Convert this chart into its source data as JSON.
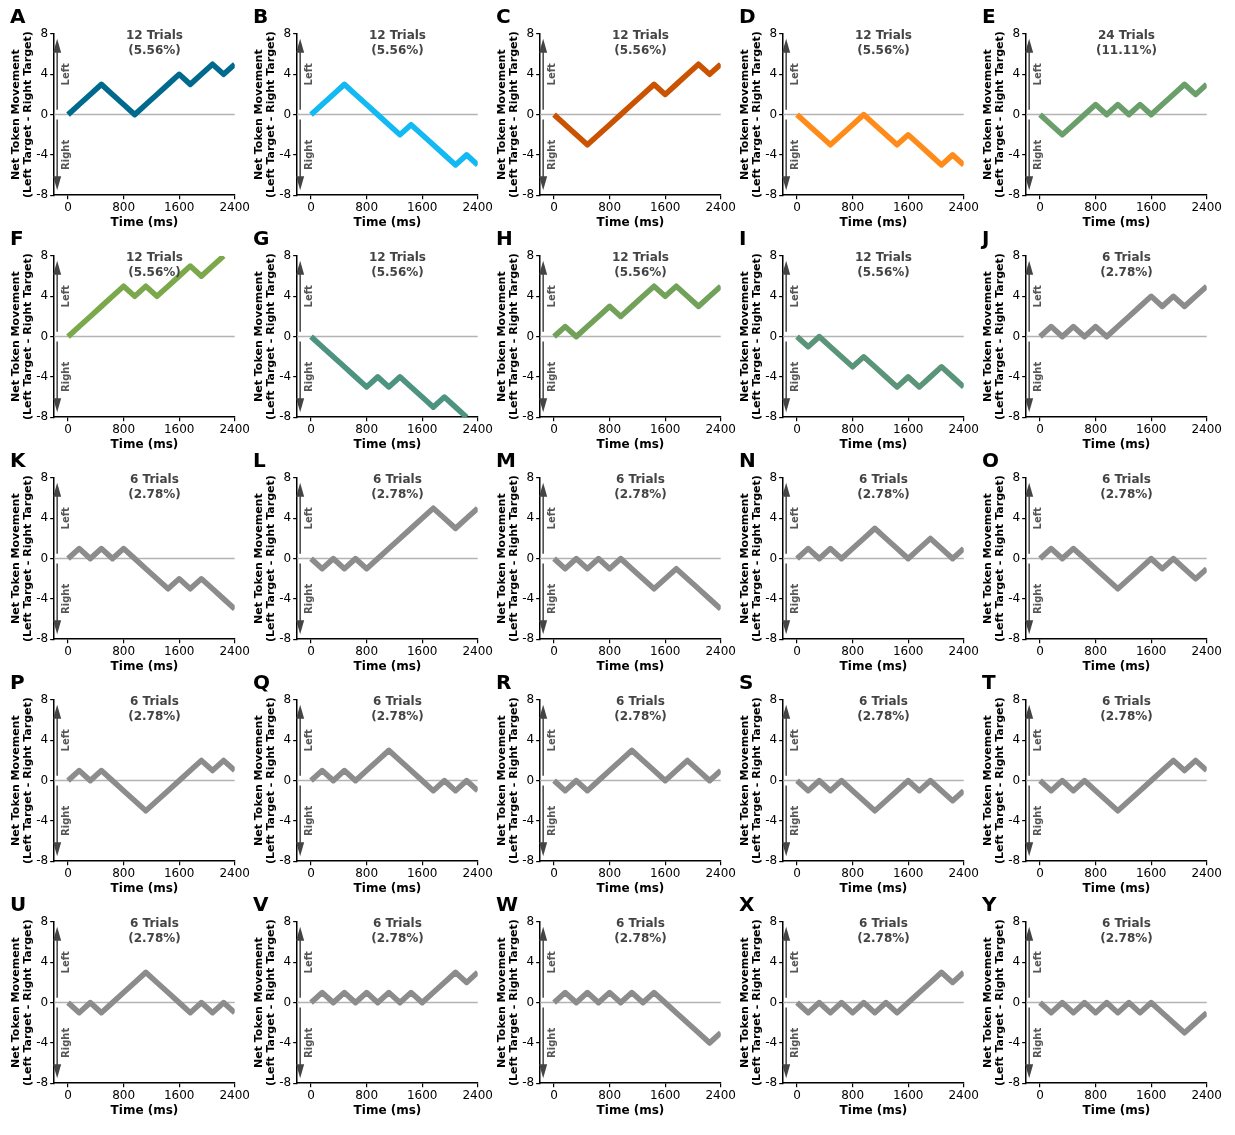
{
  "chart_data": [
    {
      "type": "line",
      "title": "A",
      "subtitle": "12 Trials\n(5.56%)",
      "xlabel": "Time (ms)",
      "ylabel": "Net Token Movement\n(Left Target - Right Target)",
      "annotations": [
        "Left",
        "Right"
      ],
      "x": [
        0,
        160,
        320,
        480,
        640,
        800,
        960,
        1120,
        1280,
        1440,
        1600,
        1760,
        1920,
        2080,
        2240,
        2400
      ],
      "xlim": [
        -200,
        2400
      ],
      "xticks": [
        0,
        800,
        1600,
        2400
      ],
      "ylim": [
        -8,
        8
      ],
      "yticks": [
        -8,
        -4,
        0,
        4,
        8
      ],
      "ref_lines": [
        {
          "axis": "y",
          "value": 0,
          "color": "#b3b3b3"
        }
      ],
      "series": [
        {
          "color": "#006a8e",
          "values": [
            0,
            1,
            2,
            3,
            2,
            1,
            0,
            1,
            2,
            3,
            4,
            3,
            4,
            5,
            4,
            5
          ]
        }
      ]
    },
    {
      "type": "line",
      "title": "B",
      "subtitle": "12 Trials\n(5.56%)",
      "xlabel": "Time (ms)",
      "ylabel": "Net Token Movement\n(Left Target - Right Target)",
      "annotations": [
        "Left",
        "Right"
      ],
      "x": [
        0,
        160,
        320,
        480,
        640,
        800,
        960,
        1120,
        1280,
        1440,
        1600,
        1760,
        1920,
        2080,
        2240,
        2400
      ],
      "xlim": [
        -200,
        2400
      ],
      "xticks": [
        0,
        800,
        1600,
        2400
      ],
      "ylim": [
        -8,
        8
      ],
      "yticks": [
        -8,
        -4,
        0,
        4,
        8
      ],
      "ref_lines": [
        {
          "axis": "y",
          "value": 0,
          "color": "#b3b3b3"
        }
      ],
      "series": [
        {
          "color": "#12b9f2",
          "values": [
            0,
            1,
            2,
            3,
            2,
            1,
            0,
            -1,
            -2,
            -1,
            -2,
            -3,
            -4,
            -5,
            -4,
            -5
          ]
        }
      ]
    },
    {
      "type": "line",
      "title": "C",
      "subtitle": "12 Trials\n(5.56%)",
      "xlabel": "Time (ms)",
      "ylabel": "Net Token Movement\n(Left Target - Right Target)",
      "annotations": [
        "Left",
        "Right"
      ],
      "x": [
        0,
        160,
        320,
        480,
        640,
        800,
        960,
        1120,
        1280,
        1440,
        1600,
        1760,
        1920,
        2080,
        2240,
        2400
      ],
      "xlim": [
        -200,
        2400
      ],
      "xticks": [
        0,
        800,
        1600,
        2400
      ],
      "ylim": [
        -8,
        8
      ],
      "yticks": [
        -8,
        -4,
        0,
        4,
        8
      ],
      "ref_lines": [
        {
          "axis": "y",
          "value": 0,
          "color": "#b3b3b3"
        }
      ],
      "series": [
        {
          "color": "#c95300",
          "values": [
            0,
            -1,
            -2,
            -3,
            -2,
            -1,
            0,
            1,
            2,
            3,
            2,
            3,
            4,
            5,
            4,
            5
          ]
        }
      ]
    },
    {
      "type": "line",
      "title": "D",
      "subtitle": "12 Trials\n(5.56%)",
      "xlabel": "Time (ms)",
      "ylabel": "Net Token Movement\n(Left Target - Right Target)",
      "annotations": [
        "Left",
        "Right"
      ],
      "x": [
        0,
        160,
        320,
        480,
        640,
        800,
        960,
        1120,
        1280,
        1440,
        1600,
        1760,
        1920,
        2080,
        2240,
        2400
      ],
      "xlim": [
        -200,
        2400
      ],
      "xticks": [
        0,
        800,
        1600,
        2400
      ],
      "ylim": [
        -8,
        8
      ],
      "yticks": [
        -8,
        -4,
        0,
        4,
        8
      ],
      "ref_lines": [
        {
          "axis": "y",
          "value": 0,
          "color": "#b3b3b3"
        }
      ],
      "series": [
        {
          "color": "#ff8c1a",
          "values": [
            0,
            -1,
            -2,
            -3,
            -2,
            -1,
            0,
            -1,
            -2,
            -3,
            -2,
            -3,
            -4,
            -5,
            -4,
            -5
          ]
        }
      ]
    },
    {
      "type": "line",
      "title": "E",
      "subtitle": "24 Trials\n(11.11%)",
      "xlabel": "Time (ms)",
      "ylabel": "Net Token Movement\n(Left Target - Right Target)",
      "annotations": [
        "Left",
        "Right"
      ],
      "x": [
        0,
        160,
        320,
        480,
        640,
        800,
        960,
        1120,
        1280,
        1440,
        1600,
        1760,
        1920,
        2080,
        2240,
        2400
      ],
      "xlim": [
        -200,
        2400
      ],
      "xticks": [
        0,
        800,
        1600,
        2400
      ],
      "ylim": [
        -8,
        8
      ],
      "yticks": [
        -8,
        -4,
        0,
        4,
        8
      ],
      "ref_lines": [
        {
          "axis": "y",
          "value": 0,
          "color": "#b3b3b3"
        }
      ],
      "series": [
        {
          "color": "#6a9e6a",
          "values": [
            0,
            -1,
            -2,
            -1,
            0,
            1,
            0,
            1,
            0,
            1,
            0,
            1,
            2,
            3,
            2,
            3
          ]
        }
      ]
    },
    {
      "type": "line",
      "title": "F",
      "subtitle": "12 Trials\n(5.56%)",
      "xlabel": "Time (ms)",
      "ylabel": "Net Token Movement\n(Left Target - Right Target)",
      "annotations": [
        "Left",
        "Right"
      ],
      "xlim": [
        -200,
        2400
      ],
      "xticks": [
        0,
        800,
        1600,
        2400
      ],
      "ylim": [
        -8,
        8
      ],
      "yticks": [
        -8,
        -4,
        0,
        4,
        8
      ],
      "ref_lines": [
        {
          "axis": "y",
          "value": 0,
          "color": "#b3b3b3"
        }
      ],
      "series": [
        {
          "color": "#7ba84a",
          "x": [
            0,
            160,
            320,
            480,
            640,
            800,
            960,
            1120,
            1280,
            1440,
            1600,
            1760,
            1920,
            2080,
            2240
          ],
          "values": [
            0,
            1,
            2,
            3,
            4,
            5,
            4,
            5,
            4,
            5,
            6,
            7,
            6,
            7,
            8
          ]
        }
      ]
    },
    {
      "type": "line",
      "title": "G",
      "subtitle": "12 Trials\n(5.56%)",
      "xlabel": "Time (ms)",
      "ylabel": "Net Token Movement\n(Left Target - Right Target)",
      "annotations": [
        "Left",
        "Right"
      ],
      "xlim": [
        -200,
        2400
      ],
      "xticks": [
        0,
        800,
        1600,
        2400
      ],
      "ylim": [
        -8,
        8
      ],
      "yticks": [
        -8,
        -4,
        0,
        4,
        8
      ],
      "ref_lines": [
        {
          "axis": "y",
          "value": 0,
          "color": "#b3b3b3"
        }
      ],
      "series": [
        {
          "color": "#4d9480",
          "x": [
            0,
            160,
            320,
            480,
            640,
            800,
            960,
            1120,
            1280,
            1440,
            1600,
            1760,
            1920,
            2080,
            2240
          ],
          "values": [
            0,
            -1,
            -2,
            -3,
            -4,
            -5,
            -4,
            -5,
            -4,
            -5,
            -6,
            -7,
            -6,
            -7,
            -8
          ]
        }
      ]
    },
    {
      "type": "line",
      "title": "H",
      "subtitle": "12 Trials\n(5.56%)",
      "xlabel": "Time (ms)",
      "ylabel": "Net Token Movement\n(Left Target - Right Target)",
      "annotations": [
        "Left",
        "Right"
      ],
      "x": [
        0,
        160,
        320,
        480,
        640,
        800,
        960,
        1120,
        1280,
        1440,
        1600,
        1760,
        1920,
        2080,
        2240,
        2400
      ],
      "xlim": [
        -200,
        2400
      ],
      "xticks": [
        0,
        800,
        1600,
        2400
      ],
      "ylim": [
        -8,
        8
      ],
      "yticks": [
        -8,
        -4,
        0,
        4,
        8
      ],
      "ref_lines": [
        {
          "axis": "y",
          "value": 0,
          "color": "#b3b3b3"
        }
      ],
      "series": [
        {
          "color": "#72a25a",
          "values": [
            0,
            1,
            0,
            1,
            2,
            3,
            2,
            3,
            4,
            5,
            4,
            5,
            4,
            3,
            4,
            5
          ]
        }
      ]
    },
    {
      "type": "line",
      "title": "I",
      "subtitle": "12 Trials\n(5.56%)",
      "xlabel": "Time (ms)",
      "ylabel": "Net Token Movement\n(Left Target - Right Target)",
      "annotations": [
        "Left",
        "Right"
      ],
      "x": [
        0,
        160,
        320,
        480,
        640,
        800,
        960,
        1120,
        1280,
        1440,
        1600,
        1760,
        1920,
        2080,
        2240,
        2400
      ],
      "xlim": [
        -200,
        2400
      ],
      "xticks": [
        0,
        800,
        1600,
        2400
      ],
      "ylim": [
        -8,
        8
      ],
      "yticks": [
        -8,
        -4,
        0,
        4,
        8
      ],
      "ref_lines": [
        {
          "axis": "y",
          "value": 0,
          "color": "#b3b3b3"
        }
      ],
      "series": [
        {
          "color": "#5a9479",
          "values": [
            0,
            -1,
            0,
            -1,
            -2,
            -3,
            -2,
            -3,
            -4,
            -5,
            -4,
            -5,
            -4,
            -3,
            -4,
            -5
          ]
        }
      ]
    },
    {
      "type": "line",
      "title": "J",
      "subtitle": "6 Trials\n(2.78%)",
      "xlabel": "Time (ms)",
      "ylabel": "Net Token Movement\n(Left Target - Right Target)",
      "annotations": [
        "Left",
        "Right"
      ],
      "x": [
        0,
        160,
        320,
        480,
        640,
        800,
        960,
        1120,
        1280,
        1440,
        1600,
        1760,
        1920,
        2080,
        2240,
        2400
      ],
      "xlim": [
        -200,
        2400
      ],
      "xticks": [
        0,
        800,
        1600,
        2400
      ],
      "ylim": [
        -8,
        8
      ],
      "yticks": [
        -8,
        -4,
        0,
        4,
        8
      ],
      "ref_lines": [
        {
          "axis": "y",
          "value": 0,
          "color": "#b3b3b3"
        }
      ],
      "series": [
        {
          "color": "#8c8c8c",
          "values": [
            0,
            1,
            0,
            1,
            0,
            1,
            0,
            1,
            2,
            3,
            4,
            3,
            4,
            3,
            4,
            5
          ]
        }
      ]
    },
    {
      "type": "line",
      "title": "K",
      "subtitle": "6 Trials\n(2.78%)",
      "xlabel": "Time (ms)",
      "ylabel": "Net Token Movement\n(Left Target - Right Target)",
      "annotations": [
        "Left",
        "Right"
      ],
      "x": [
        0,
        160,
        320,
        480,
        640,
        800,
        960,
        1120,
        1280,
        1440,
        1600,
        1760,
        1920,
        2080,
        2240,
        2400
      ],
      "xlim": [
        -200,
        2400
      ],
      "xticks": [
        0,
        800,
        1600,
        2400
      ],
      "ylim": [
        -8,
        8
      ],
      "yticks": [
        -8,
        -4,
        0,
        4,
        8
      ],
      "ref_lines": [
        {
          "axis": "y",
          "value": 0,
          "color": "#b3b3b3"
        }
      ],
      "series": [
        {
          "color": "#8c8c8c",
          "values": [
            0,
            1,
            0,
            1,
            0,
            1,
            0,
            -1,
            -2,
            -3,
            -2,
            -3,
            -2,
            -3,
            -4,
            -5
          ]
        }
      ]
    },
    {
      "type": "line",
      "title": "L",
      "subtitle": "6 Trials\n(2.78%)",
      "xlabel": "Time (ms)",
      "ylabel": "Net Token Movement\n(Left Target - Right Target)",
      "annotations": [
        "Left",
        "Right"
      ],
      "x": [
        0,
        160,
        320,
        480,
        640,
        800,
        960,
        1120,
        1280,
        1440,
        1600,
        1760,
        1920,
        2080,
        2240,
        2400
      ],
      "xlim": [
        -200,
        2400
      ],
      "xticks": [
        0,
        800,
        1600,
        2400
      ],
      "ylim": [
        -8,
        8
      ],
      "yticks": [
        -8,
        -4,
        0,
        4,
        8
      ],
      "ref_lines": [
        {
          "axis": "y",
          "value": 0,
          "color": "#b3b3b3"
        }
      ],
      "series": [
        {
          "color": "#8c8c8c",
          "values": [
            0,
            -1,
            0,
            -1,
            0,
            -1,
            0,
            1,
            2,
            3,
            4,
            5,
            4,
            3,
            4,
            5
          ]
        }
      ]
    },
    {
      "type": "line",
      "title": "M",
      "subtitle": "6 Trials\n(2.78%)",
      "xlabel": "Time (ms)",
      "ylabel": "Net Token Movement\n(Left Target - Right Target)",
      "annotations": [
        "Left",
        "Right"
      ],
      "x": [
        0,
        160,
        320,
        480,
        640,
        800,
        960,
        1120,
        1280,
        1440,
        1600,
        1760,
        1920,
        2080,
        2240,
        2400
      ],
      "xlim": [
        -200,
        2400
      ],
      "xticks": [
        0,
        800,
        1600,
        2400
      ],
      "ylim": [
        -8,
        8
      ],
      "yticks": [
        -8,
        -4,
        0,
        4,
        8
      ],
      "ref_lines": [
        {
          "axis": "y",
          "value": 0,
          "color": "#b3b3b3"
        }
      ],
      "series": [
        {
          "color": "#8c8c8c",
          "values": [
            0,
            -1,
            0,
            -1,
            0,
            -1,
            0,
            -1,
            -2,
            -3,
            -2,
            -1,
            -2,
            -3,
            -4,
            -5
          ]
        }
      ]
    },
    {
      "type": "line",
      "title": "N",
      "subtitle": "6 Trials\n(2.78%)",
      "xlabel": "Time (ms)",
      "ylabel": "Net Token Movement\n(Left Target - Right Target)",
      "annotations": [
        "Left",
        "Right"
      ],
      "x": [
        0,
        160,
        320,
        480,
        640,
        800,
        960,
        1120,
        1280,
        1440,
        1600,
        1760,
        1920,
        2080,
        2240,
        2400
      ],
      "xlim": [
        -200,
        2400
      ],
      "xticks": [
        0,
        800,
        1600,
        2400
      ],
      "ylim": [
        -8,
        8
      ],
      "yticks": [
        -8,
        -4,
        0,
        4,
        8
      ],
      "ref_lines": [
        {
          "axis": "y",
          "value": 0,
          "color": "#b3b3b3"
        }
      ],
      "series": [
        {
          "color": "#8c8c8c",
          "values": [
            0,
            1,
            0,
            1,
            0,
            1,
            2,
            3,
            2,
            1,
            0,
            1,
            2,
            1,
            0,
            1
          ]
        }
      ]
    },
    {
      "type": "line",
      "title": "O",
      "subtitle": "6 Trials\n(2.78%)",
      "xlabel": "Time (ms)",
      "ylabel": "Net Token Movement\n(Left Target - Right Target)",
      "annotations": [
        "Left",
        "Right"
      ],
      "x": [
        0,
        160,
        320,
        480,
        640,
        800,
        960,
        1120,
        1280,
        1440,
        1600,
        1760,
        1920,
        2080,
        2240,
        2400
      ],
      "xlim": [
        -200,
        2400
      ],
      "xticks": [
        0,
        800,
        1600,
        2400
      ],
      "ylim": [
        -8,
        8
      ],
      "yticks": [
        -8,
        -4,
        0,
        4,
        8
      ],
      "ref_lines": [
        {
          "axis": "y",
          "value": 0,
          "color": "#b3b3b3"
        }
      ],
      "series": [
        {
          "color": "#8c8c8c",
          "values": [
            0,
            1,
            0,
            1,
            0,
            -1,
            -2,
            -3,
            -2,
            -1,
            0,
            -1,
            0,
            -1,
            -2,
            -1
          ]
        }
      ]
    },
    {
      "type": "line",
      "title": "P",
      "subtitle": "6 Trials\n(2.78%)",
      "xlabel": "Time (ms)",
      "ylabel": "Net Token Movement\n(Left Target - Right Target)",
      "annotations": [
        "Left",
        "Right"
      ],
      "x": [
        0,
        160,
        320,
        480,
        640,
        800,
        960,
        1120,
        1280,
        1440,
        1600,
        1760,
        1920,
        2080,
        2240,
        2400
      ],
      "xlim": [
        -200,
        2400
      ],
      "xticks": [
        0,
        800,
        1600,
        2400
      ],
      "ylim": [
        -8,
        8
      ],
      "yticks": [
        -8,
        -4,
        0,
        4,
        8
      ],
      "ref_lines": [
        {
          "axis": "y",
          "value": 0,
          "color": "#b3b3b3"
        }
      ],
      "series": [
        {
          "color": "#8c8c8c",
          "values": [
            0,
            1,
            0,
            1,
            0,
            -1,
            -2,
            -3,
            -2,
            -1,
            0,
            1,
            2,
            1,
            2,
            1
          ]
        }
      ]
    },
    {
      "type": "line",
      "title": "Q",
      "subtitle": "6 Trials\n(2.78%)",
      "xlabel": "Time (ms)",
      "ylabel": "Net Token Movement\n(Left Target - Right Target)",
      "annotations": [
        "Left",
        "Right"
      ],
      "x": [
        0,
        160,
        320,
        480,
        640,
        800,
        960,
        1120,
        1280,
        1440,
        1600,
        1760,
        1920,
        2080,
        2240,
        2400
      ],
      "xlim": [
        -200,
        2400
      ],
      "xticks": [
        0,
        800,
        1600,
        2400
      ],
      "ylim": [
        -8,
        8
      ],
      "yticks": [
        -8,
        -4,
        0,
        4,
        8
      ],
      "ref_lines": [
        {
          "axis": "y",
          "value": 0,
          "color": "#b3b3b3"
        }
      ],
      "series": [
        {
          "color": "#8c8c8c",
          "values": [
            0,
            1,
            0,
            1,
            0,
            1,
            2,
            3,
            2,
            1,
            0,
            -1,
            0,
            -1,
            0,
            -1
          ]
        }
      ]
    },
    {
      "type": "line",
      "title": "R",
      "subtitle": "6 Trials\n(2.78%)",
      "xlabel": "Time (ms)",
      "ylabel": "Net Token Movement\n(Left Target - Right Target)",
      "annotations": [
        "Left",
        "Right"
      ],
      "x": [
        0,
        160,
        320,
        480,
        640,
        800,
        960,
        1120,
        1280,
        1440,
        1600,
        1760,
        1920,
        2080,
        2240,
        2400
      ],
      "xlim": [
        -200,
        2400
      ],
      "xticks": [
        0,
        800,
        1600,
        2400
      ],
      "ylim": [
        -8,
        8
      ],
      "yticks": [
        -8,
        -4,
        0,
        4,
        8
      ],
      "ref_lines": [
        {
          "axis": "y",
          "value": 0,
          "color": "#b3b3b3"
        }
      ],
      "series": [
        {
          "color": "#8c8c8c",
          "values": [
            0,
            -1,
            0,
            -1,
            0,
            1,
            2,
            3,
            2,
            1,
            0,
            1,
            2,
            1,
            0,
            1
          ]
        }
      ]
    },
    {
      "type": "line",
      "title": "S",
      "subtitle": "6 Trials\n(2.78%)",
      "xlabel": "Time (ms)",
      "ylabel": "Net Token Movement\n(Left Target - Right Target)",
      "annotations": [
        "Left",
        "Right"
      ],
      "x": [
        0,
        160,
        320,
        480,
        640,
        800,
        960,
        1120,
        1280,
        1440,
        1600,
        1760,
        1920,
        2080,
        2240,
        2400
      ],
      "xlim": [
        -200,
        2400
      ],
      "xticks": [
        0,
        800,
        1600,
        2400
      ],
      "ylim": [
        -8,
        8
      ],
      "yticks": [
        -8,
        -4,
        0,
        4,
        8
      ],
      "ref_lines": [
        {
          "axis": "y",
          "value": 0,
          "color": "#b3b3b3"
        }
      ],
      "series": [
        {
          "color": "#8c8c8c",
          "values": [
            0,
            -1,
            0,
            -1,
            0,
            -1,
            -2,
            -3,
            -2,
            -1,
            0,
            -1,
            0,
            -1,
            -2,
            -1
          ]
        }
      ]
    },
    {
      "type": "line",
      "title": "T",
      "subtitle": "6 Trials\n(2.78%)",
      "xlabel": "Time (ms)",
      "ylabel": "Net Token Movement\n(Left Target - Right Target)",
      "annotations": [
        "Left",
        "Right"
      ],
      "x": [
        0,
        160,
        320,
        480,
        640,
        800,
        960,
        1120,
        1280,
        1440,
        1600,
        1760,
        1920,
        2080,
        2240,
        2400
      ],
      "xlim": [
        -200,
        2400
      ],
      "xticks": [
        0,
        800,
        1600,
        2400
      ],
      "ylim": [
        -8,
        8
      ],
      "yticks": [
        -8,
        -4,
        0,
        4,
        8
      ],
      "ref_lines": [
        {
          "axis": "y",
          "value": 0,
          "color": "#b3b3b3"
        }
      ],
      "series": [
        {
          "color": "#8c8c8c",
          "values": [
            0,
            -1,
            0,
            -1,
            0,
            -1,
            -2,
            -3,
            -2,
            -1,
            0,
            1,
            2,
            1,
            2,
            1
          ]
        }
      ]
    },
    {
      "type": "line",
      "title": "U",
      "subtitle": "6 Trials\n(2.78%)",
      "xlabel": "Time (ms)",
      "ylabel": "Net Token Movement\n(Left Target - Right Target)",
      "annotations": [
        "Left",
        "Right"
      ],
      "x": [
        0,
        160,
        320,
        480,
        640,
        800,
        960,
        1120,
        1280,
        1440,
        1600,
        1760,
        1920,
        2080,
        2240,
        2400
      ],
      "xlim": [
        -200,
        2400
      ],
      "xticks": [
        0,
        800,
        1600,
        2400
      ],
      "ylim": [
        -8,
        8
      ],
      "yticks": [
        -8,
        -4,
        0,
        4,
        8
      ],
      "ref_lines": [
        {
          "axis": "y",
          "value": 0,
          "color": "#b3b3b3"
        }
      ],
      "series": [
        {
          "color": "#8c8c8c",
          "values": [
            0,
            -1,
            0,
            -1,
            0,
            1,
            2,
            3,
            2,
            1,
            0,
            -1,
            0,
            -1,
            0,
            -1
          ]
        }
      ]
    },
    {
      "type": "line",
      "title": "V",
      "subtitle": "6 Trials\n(2.78%)",
      "xlabel": "Time (ms)",
      "ylabel": "Net Token Movement\n(Left Target - Right Target)",
      "annotations": [
        "Left",
        "Right"
      ],
      "x": [
        0,
        160,
        320,
        480,
        640,
        800,
        960,
        1120,
        1280,
        1440,
        1600,
        1760,
        1920,
        2080,
        2240,
        2400
      ],
      "xlim": [
        -200,
        2400
      ],
      "xticks": [
        0,
        800,
        1600,
        2400
      ],
      "ylim": [
        -8,
        8
      ],
      "yticks": [
        -8,
        -4,
        0,
        4,
        8
      ],
      "ref_lines": [
        {
          "axis": "y",
          "value": 0,
          "color": "#b3b3b3"
        }
      ],
      "series": [
        {
          "color": "#8c8c8c",
          "values": [
            0,
            1,
            0,
            1,
            0,
            1,
            0,
            1,
            0,
            1,
            0,
            1,
            2,
            3,
            2,
            3
          ]
        }
      ]
    },
    {
      "type": "line",
      "title": "W",
      "subtitle": "6 Trials\n(2.78%)",
      "xlabel": "Time (ms)",
      "ylabel": "Net Token Movement\n(Left Target - Right Target)",
      "annotations": [
        "Left",
        "Right"
      ],
      "x": [
        0,
        160,
        320,
        480,
        640,
        800,
        960,
        1120,
        1280,
        1440,
        1600,
        1760,
        1920,
        2080,
        2240,
        2400
      ],
      "xlim": [
        -200,
        2400
      ],
      "xticks": [
        0,
        800,
        1600,
        2400
      ],
      "ylim": [
        -8,
        8
      ],
      "yticks": [
        -8,
        -4,
        0,
        4,
        8
      ],
      "ref_lines": [
        {
          "axis": "y",
          "value": 0,
          "color": "#b3b3b3"
        }
      ],
      "series": [
        {
          "color": "#8c8c8c",
          "values": [
            0,
            1,
            0,
            1,
            0,
            1,
            0,
            1,
            0,
            1,
            0,
            -1,
            -2,
            -3,
            -4,
            -3
          ]
        }
      ]
    },
    {
      "type": "line",
      "title": "X",
      "subtitle": "6 Trials\n(2.78%)",
      "xlabel": "Time (ms)",
      "ylabel": "Net Token Movement\n(Left Target - Right Target)",
      "annotations": [
        "Left",
        "Right"
      ],
      "x": [
        0,
        160,
        320,
        480,
        640,
        800,
        960,
        1120,
        1280,
        1440,
        1600,
        1760,
        1920,
        2080,
        2240,
        2400
      ],
      "xlim": [
        -200,
        2400
      ],
      "xticks": [
        0,
        800,
        1600,
        2400
      ],
      "ylim": [
        -8,
        8
      ],
      "yticks": [
        -8,
        -4,
        0,
        4,
        8
      ],
      "ref_lines": [
        {
          "axis": "y",
          "value": 0,
          "color": "#b3b3b3"
        }
      ],
      "series": [
        {
          "color": "#8c8c8c",
          "values": [
            0,
            -1,
            0,
            -1,
            0,
            -1,
            0,
            -1,
            0,
            -1,
            0,
            1,
            2,
            3,
            2,
            3
          ]
        }
      ]
    },
    {
      "type": "line",
      "title": "Y",
      "subtitle": "6 Trials\n(2.78%)",
      "xlabel": "Time (ms)",
      "ylabel": "Net Token Movement\n(Left Target - Right Target)",
      "annotations": [
        "Left",
        "Right"
      ],
      "x": [
        0,
        160,
        320,
        480,
        640,
        800,
        960,
        1120,
        1280,
        1440,
        1600,
        1760,
        1920,
        2080,
        2240,
        2400
      ],
      "xlim": [
        -200,
        2400
      ],
      "xticks": [
        0,
        800,
        1600,
        2400
      ],
      "ylim": [
        -8,
        8
      ],
      "yticks": [
        -8,
        -4,
        0,
        4,
        8
      ],
      "ref_lines": [
        {
          "axis": "y",
          "value": 0,
          "color": "#b3b3b3"
        }
      ],
      "series": [
        {
          "color": "#8c8c8c",
          "values": [
            0,
            -1,
            0,
            -1,
            0,
            -1,
            0,
            -1,
            0,
            -1,
            0,
            -1,
            -2,
            -3,
            -2,
            -1
          ]
        }
      ]
    }
  ]
}
